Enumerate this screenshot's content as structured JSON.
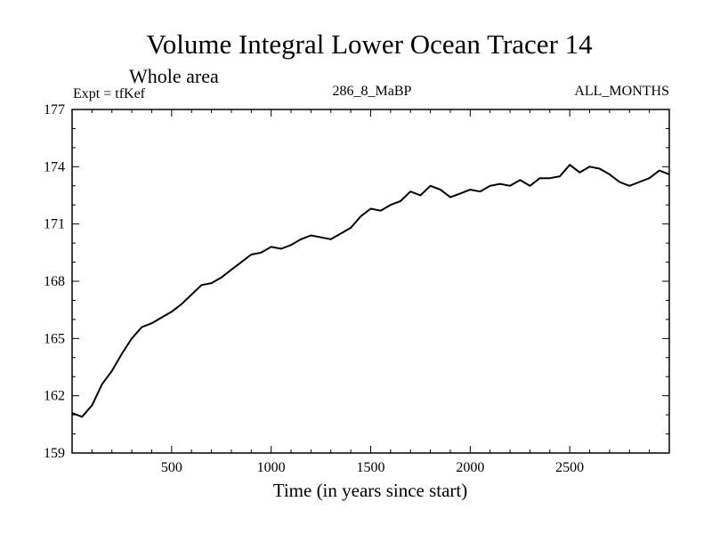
{
  "chart_data": {
    "type": "line",
    "title": "Volume Integral Lower Ocean Tracer 14",
    "subtitle": "Whole area",
    "annotations": {
      "left": "Expt = tfKef",
      "center": "286_8_MaBP",
      "right": "ALL_MONTHS"
    },
    "xlabel": "Time (in years since start)",
    "ylabel": "",
    "xlim": [
      0,
      3000
    ],
    "ylim": [
      159,
      177
    ],
    "xticks": [
      500,
      1000,
      1500,
      2000,
      2500
    ],
    "yticks": [
      159,
      162,
      165,
      168,
      171,
      174,
      177
    ],
    "grid": false,
    "series": [
      {
        "values_x": [
          0,
          50,
          100,
          150,
          200,
          250,
          300,
          350,
          400,
          450,
          500,
          550,
          600,
          650,
          700,
          750,
          800,
          850,
          900,
          950,
          1000,
          1050,
          1100,
          1150,
          1200,
          1250,
          1300,
          1350,
          1400,
          1450,
          1500,
          1550,
          1600,
          1650,
          1700,
          1750,
          1800,
          1850,
          1900,
          1950,
          2000,
          2050,
          2100,
          2150,
          2200,
          2250,
          2300,
          2350,
          2400,
          2450,
          2500,
          2550,
          2600,
          2650,
          2700,
          2750,
          2800,
          2850,
          2900,
          2950,
          3000
        ],
        "values_y": [
          161.1,
          160.9,
          161.5,
          162.6,
          163.3,
          164.2,
          165.0,
          165.6,
          165.8,
          166.1,
          166.4,
          166.8,
          167.3,
          167.8,
          167.9,
          168.2,
          168.6,
          169.0,
          169.4,
          169.5,
          169.8,
          169.7,
          169.9,
          170.2,
          170.4,
          170.3,
          170.2,
          170.5,
          170.8,
          171.4,
          171.8,
          171.7,
          172.0,
          172.2,
          172.7,
          172.5,
          173.0,
          172.8,
          172.4,
          172.6,
          172.8,
          172.7,
          173.0,
          173.1,
          173.0,
          173.3,
          173.0,
          173.4,
          173.4,
          173.5,
          174.1,
          173.7,
          174.0,
          173.9,
          173.6,
          173.2,
          173.0,
          173.2,
          173.4,
          173.8,
          173.6
        ]
      }
    ]
  }
}
